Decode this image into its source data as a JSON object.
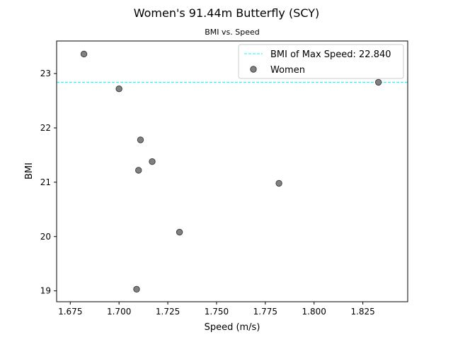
{
  "chart_data": {
    "type": "scatter",
    "title": "Women's 91.44m Butterfly (SCY)",
    "subtitle": "BMI vs. Speed",
    "xlabel": "Speed (m/s)",
    "ylabel": "BMI",
    "xlim": [
      1.668,
      1.848
    ],
    "ylim": [
      18.8,
      23.6
    ],
    "x_ticks": [
      1.675,
      1.7,
      1.725,
      1.75,
      1.775,
      1.8,
      1.825
    ],
    "x_tick_labels": [
      "1.675",
      "1.700",
      "1.725",
      "1.750",
      "1.775",
      "1.800",
      "1.825"
    ],
    "y_ticks": [
      19,
      20,
      21,
      22,
      23
    ],
    "y_tick_labels": [
      "19",
      "20",
      "21",
      "22",
      "23"
    ],
    "grid": false,
    "legend_position": "top-right",
    "series": [
      {
        "name": "Women",
        "color": "#808080",
        "edge_color": "#404040",
        "x": [
          1.682,
          1.7,
          1.711,
          1.71,
          1.717,
          1.709,
          1.731,
          1.782,
          1.833
        ],
        "y": [
          23.36,
          22.72,
          21.78,
          21.22,
          21.38,
          19.03,
          20.08,
          20.98,
          22.84
        ]
      }
    ],
    "reference_line": {
      "label": "BMI of Max Speed: 22.840",
      "value": 22.84,
      "color": "#00ffff",
      "style": "dashed"
    }
  }
}
